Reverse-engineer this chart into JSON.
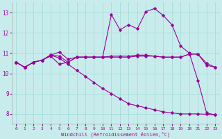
{
  "xlabel": "Windchill (Refroidissement éolien,°C)",
  "background_color": "#c8ecec",
  "grid_color": "#aadddd",
  "line_color": "#990099",
  "x": [
    0,
    1,
    2,
    3,
    4,
    5,
    6,
    7,
    8,
    9,
    10,
    11,
    12,
    13,
    14,
    15,
    16,
    17,
    18,
    19,
    20,
    21,
    22,
    23
  ],
  "series1": [
    10.55,
    10.3,
    10.55,
    10.65,
    10.9,
    10.85,
    10.55,
    10.8,
    10.8,
    10.8,
    10.8,
    12.9,
    12.15,
    12.4,
    12.2,
    13.05,
    13.2,
    12.85,
    12.4,
    11.35,
    11.0,
    9.65,
    8.05,
    7.95
  ],
  "series2": [
    10.55,
    10.3,
    10.55,
    10.65,
    10.9,
    11.05,
    10.7,
    10.8,
    10.8,
    10.8,
    10.8,
    10.85,
    10.85,
    10.85,
    10.9,
    10.9,
    10.85,
    10.8,
    10.8,
    10.8,
    10.95,
    10.95,
    10.4,
    10.3
  ],
  "series3": [
    10.55,
    10.3,
    10.55,
    10.65,
    10.85,
    10.45,
    10.55,
    10.8,
    10.8,
    10.8,
    10.8,
    10.8,
    10.8,
    10.8,
    10.85,
    10.85,
    10.85,
    10.8,
    10.8,
    10.8,
    10.95,
    10.95,
    10.5,
    10.3
  ],
  "series4": [
    10.55,
    10.3,
    10.55,
    10.65,
    10.9,
    10.75,
    10.45,
    10.15,
    9.85,
    9.55,
    9.25,
    9.0,
    8.75,
    8.5,
    8.4,
    8.3,
    8.2,
    8.1,
    8.05,
    8.0,
    8.0,
    8.0,
    7.98,
    7.95
  ],
  "ylim": [
    7.5,
    13.5
  ],
  "yticks": [
    8,
    9,
    10,
    11,
    12,
    13
  ],
  "xlim": [
    -0.5,
    23.5
  ],
  "xticks": [
    0,
    1,
    2,
    3,
    4,
    5,
    6,
    7,
    8,
    9,
    10,
    11,
    12,
    13,
    14,
    15,
    16,
    17,
    18,
    19,
    20,
    21,
    22,
    23
  ]
}
